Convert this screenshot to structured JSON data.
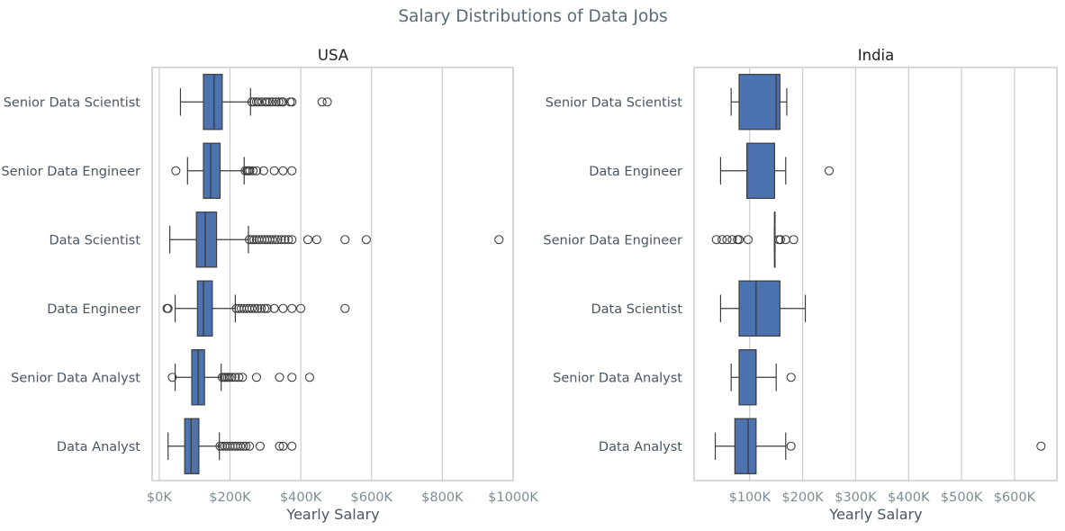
{
  "chart_data": {
    "suptitle": "Salary Distributions of Data Jobs",
    "colors": {
      "box": "#4c72b0",
      "line": "#3d3d3d",
      "grid": "#cccccc"
    },
    "panels": [
      {
        "type": "box",
        "orientation": "horizontal",
        "title": "USA",
        "xlabel": "Yearly Salary",
        "xlim": [
          -20000,
          1000000
        ],
        "xticks": [
          0,
          200000,
          400000,
          600000,
          800000,
          1000000
        ],
        "xtick_labels": [
          "$0K",
          "$200K",
          "$400K",
          "$600K",
          "$800K",
          "$1000K"
        ],
        "grid": true,
        "categories": [
          {
            "name": "Senior Data Scientist",
            "whislo": 60000,
            "q1": 125000,
            "med": 155000,
            "q3": 178000,
            "whishi": 258000,
            "fliers": [
              262000,
              268000,
              275000,
              280000,
              290000,
              300000,
              305000,
              312000,
              320000,
              330000,
              338000,
              345000,
              350000,
              370000,
              375000,
              460000,
              475000
            ]
          },
          {
            "name": "Senior Data Engineer",
            "whislo": 80000,
            "q1": 125000,
            "med": 145000,
            "q3": 172000,
            "whishi": 240000,
            "fliers": [
              47000,
              243000,
              248000,
              252000,
              256000,
              265000,
              275000,
              295000,
              325000,
              350000,
              375000
            ]
          },
          {
            "name": "Data Scientist",
            "whislo": 30000,
            "q1": 105000,
            "med": 130000,
            "q3": 162000,
            "whishi": 252000,
            "fliers": [
              255000,
              262000,
              268000,
              275000,
              282000,
              290000,
              298000,
              305000,
              312000,
              320000,
              328000,
              335000,
              345000,
              355000,
              365000,
              375000,
              420000,
              445000,
              525000,
              585000,
              960000
            ]
          },
          {
            "name": "Data Engineer",
            "whislo": 45000,
            "q1": 108000,
            "med": 125000,
            "q3": 150000,
            "whishi": 215000,
            "fliers": [
              22000,
              25000,
              218000,
              225000,
              232000,
              240000,
              248000,
              255000,
              262000,
              270000,
              278000,
              288000,
              298000,
              305000,
              325000,
              350000,
              375000,
              400000,
              525000
            ]
          },
          {
            "name": "Senior Data Analyst",
            "whislo": 45000,
            "q1": 92000,
            "med": 110000,
            "q3": 128000,
            "whishi": 175000,
            "fliers": [
              37000,
              178000,
              183000,
              188000,
              193000,
              198000,
              205000,
              215000,
              225000,
              235000,
              275000,
              340000,
              375000,
              425000
            ]
          },
          {
            "name": "Data Analyst",
            "whislo": 25000,
            "q1": 72000,
            "med": 90000,
            "q3": 112000,
            "whishi": 170000,
            "fliers": [
              172000,
              178000,
              185000,
              192000,
              200000,
              208000,
              215000,
              222000,
              230000,
              238000,
              245000,
              255000,
              285000,
              340000,
              350000,
              375000
            ]
          }
        ]
      },
      {
        "type": "box",
        "orientation": "horizontal",
        "title": "India",
        "xlabel": "Yearly Salary",
        "xlim": [
          -5000,
          680000
        ],
        "xticks": [
          100000,
          200000,
          300000,
          400000,
          500000,
          600000
        ],
        "xtick_labels": [
          "$100K",
          "$200K",
          "$300K",
          "$400K",
          "$500K",
          "$600K"
        ],
        "grid": true,
        "categories": [
          {
            "name": "Senior Data Scientist",
            "whislo": 65000,
            "q1": 80000,
            "med": 150000,
            "q3": 157000,
            "whishi": 170000,
            "fliers": []
          },
          {
            "name": "Data Engineer",
            "whislo": 45000,
            "q1": 95000,
            "med": 95000,
            "q3": 147000,
            "whishi": 168000,
            "fliers": [
              250000
            ]
          },
          {
            "name": "Senior Data Engineer",
            "whislo": 147000,
            "q1": 147000,
            "med": 147000,
            "q3": 147000,
            "whishi": 147000,
            "fliers": [
              37000,
              48000,
              57000,
              67000,
              77000,
              80000,
              97000,
              155000,
              158000,
              168000,
              183000
            ]
          },
          {
            "name": "Data Scientist",
            "whislo": 45000,
            "q1": 80000,
            "med": 112000,
            "q3": 157000,
            "whishi": 205000,
            "fliers": []
          },
          {
            "name": "Senior Data Analyst",
            "whislo": 65000,
            "q1": 80000,
            "med": 112000,
            "q3": 112000,
            "whishi": 150000,
            "fliers": [
              178000
            ]
          },
          {
            "name": "Data Analyst",
            "whislo": 35000,
            "q1": 72000,
            "med": 97000,
            "q3": 112000,
            "whishi": 168000,
            "fliers": [
              178000,
              650000
            ]
          }
        ]
      }
    ]
  }
}
